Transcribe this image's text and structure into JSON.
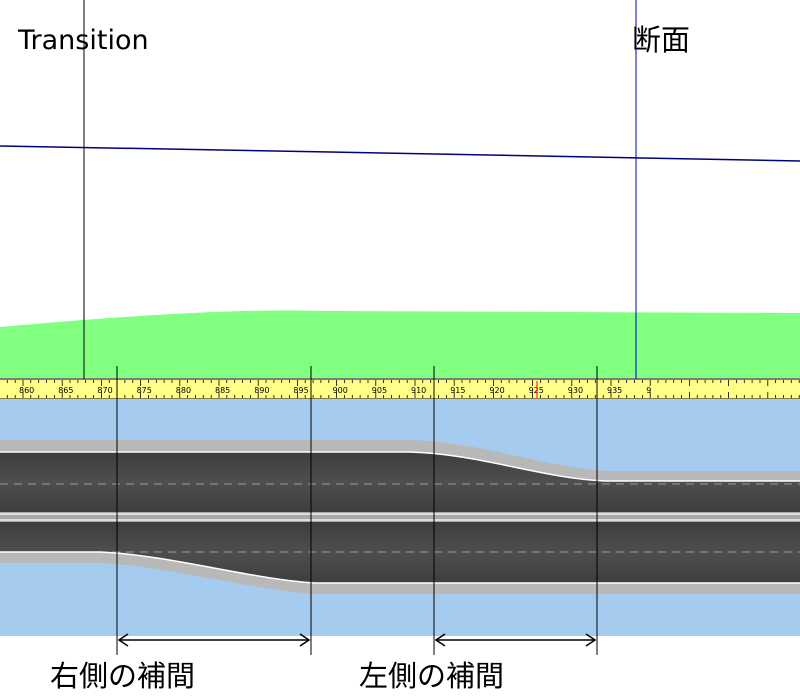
{
  "labels": {
    "transition": "Transition",
    "section": "断面",
    "right_interp": "右側の補間",
    "left_interp": "左側の補間"
  },
  "ruler": {
    "ticks": [
      "860",
      "865",
      "870",
      "875",
      "880",
      "885",
      "890",
      "895",
      "900",
      "905",
      "910",
      "915",
      "920",
      "925",
      "930",
      "935",
      "9"
    ]
  },
  "colors": {
    "terrain": "#80ff80",
    "water": "#a5cbef",
    "ruler": "#ffff88",
    "road": "#4a4a4a",
    "curb": "#b8b8b8",
    "profile_line": "#000080",
    "section_line": "#0000c0"
  }
}
